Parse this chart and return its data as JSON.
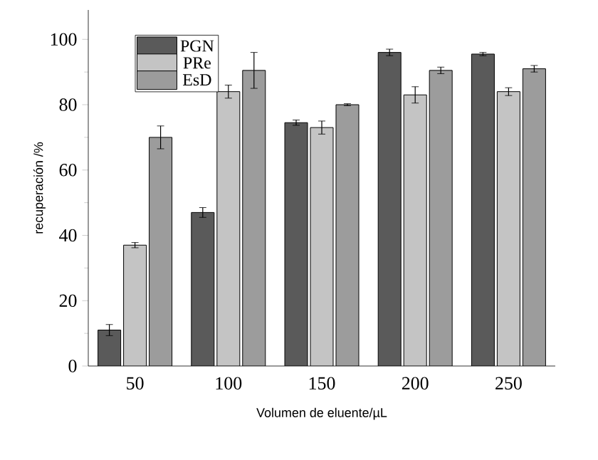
{
  "chart_data": {
    "type": "bar",
    "xlabel": "Volumen de eluente/µL",
    "ylabel": "recuperación /%",
    "categories": [
      "50",
      "100",
      "150",
      "200",
      "250"
    ],
    "series": [
      {
        "name": "PGN",
        "color": "#5a5a5a",
        "values": [
          11,
          47,
          74.5,
          96,
          95.5
        ],
        "errors": [
          1.7,
          1.5,
          0.8,
          1,
          0.5
        ]
      },
      {
        "name": "PRe",
        "color": "#c4c4c4",
        "values": [
          37,
          84,
          73,
          83,
          84
        ],
        "errors": [
          0.8,
          2,
          2,
          2.5,
          1.2
        ]
      },
      {
        "name": "EsD",
        "color": "#9c9c9c",
        "values": [
          70,
          90.5,
          80,
          90.5,
          91
        ],
        "errors": [
          3.5,
          5.5,
          0.3,
          1,
          1
        ]
      }
    ],
    "ylim": [
      0,
      109
    ],
    "yticks": [
      0,
      20,
      40,
      60,
      80,
      100
    ],
    "legend": "top left",
    "grid": false
  }
}
